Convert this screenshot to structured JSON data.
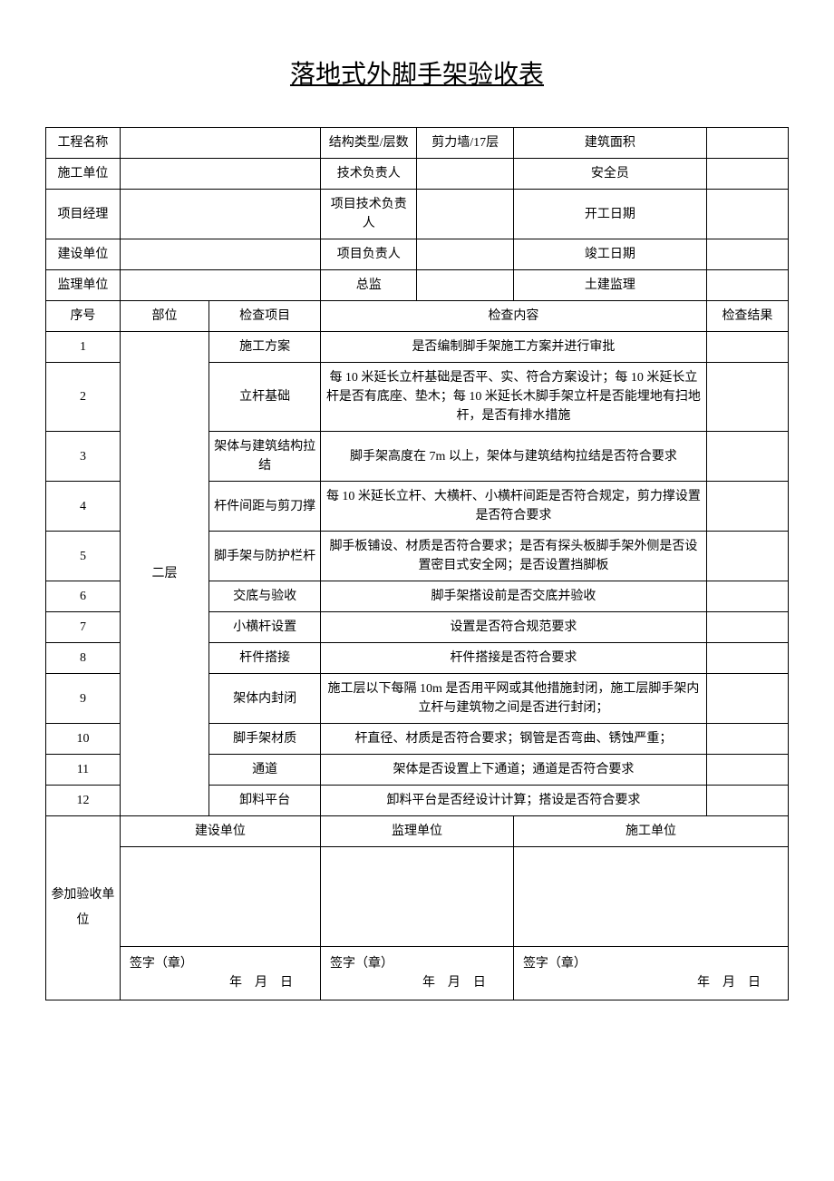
{
  "title": "落地式外脚手架验收表",
  "header": {
    "row1": {
      "col1_label": "工程名称",
      "col3_label": "结构类型/层数",
      "col4_value": "剪力墙/17层",
      "col5_label": "建筑面积"
    },
    "row2": {
      "col1_label": "施工单位",
      "col3_label": "技术负责人",
      "col5_label": "安全员"
    },
    "row3": {
      "col1_label": "项目经理",
      "col3_label": "项目技术负责人",
      "col5_label": "开工日期"
    },
    "row4": {
      "col1_label": "建设单位",
      "col3_label": "项目负责人",
      "col5_label": "竣工日期"
    },
    "row5": {
      "col1_label": "监理单位",
      "col3_label": "总监",
      "col5_label": "土建监理"
    }
  },
  "table_headers": {
    "seq": "序号",
    "part": "部位",
    "item": "检查项目",
    "content": "检查内容",
    "result": "检查结果"
  },
  "part_label": "二层",
  "rows": [
    {
      "seq": "1",
      "item": "施工方案",
      "content": "是否编制脚手架施工方案并进行审批"
    },
    {
      "seq": "2",
      "item": "立杆基础",
      "content": "每 10 米延长立杆基础是否平、实、符合方案设计；每 10 米延长立杆是否有底座、垫木；每 10 米延长木脚手架立杆是否能埋地有扫地杆，是否有排水措施"
    },
    {
      "seq": "3",
      "item": "架体与建筑结构拉结",
      "content": "脚手架高度在 7m 以上，架体与建筑结构拉结是否符合要求"
    },
    {
      "seq": "4",
      "item": "杆件间距与剪刀撑",
      "content": "每 10 米延长立杆、大横杆、小横杆间距是否符合规定，剪力撑设置是否符合要求"
    },
    {
      "seq": "5",
      "item": "脚手架与防护栏杆",
      "content": "脚手板铺设、材质是否符合要求；是否有探头板脚手架外侧是否设置密目式安全网；是否设置挡脚板"
    },
    {
      "seq": "6",
      "item": "交底与验收",
      "content": "脚手架搭设前是否交底并验收"
    },
    {
      "seq": "7",
      "item": "小横杆设置",
      "content": "设置是否符合规范要求"
    },
    {
      "seq": "8",
      "item": "杆件搭接",
      "content": "杆件搭接是否符合要求"
    },
    {
      "seq": "9",
      "item": "架体内封闭",
      "content": "施工层以下每隔 10m 是否用平网或其他措施封闭，施工层脚手架内立杆与建筑物之间是否进行封闭；"
    },
    {
      "seq": "10",
      "item": "脚手架材质",
      "content": "杆直径、材质是否符合要求；钢管是否弯曲、锈蚀严重；"
    },
    {
      "seq": "11",
      "item": "通道",
      "content": "架体是否设置上下通道；通道是否符合要求"
    },
    {
      "seq": "12",
      "item": "卸料平台",
      "content": "卸料平台是否经设计计算；搭设是否符合要求"
    }
  ],
  "footer": {
    "participate_label": "参加验收单位",
    "org1": "建设单位",
    "org2": "监理单位",
    "org3": "施工单位",
    "sign_label": "签字（章）",
    "date_label": "年　月　日"
  }
}
